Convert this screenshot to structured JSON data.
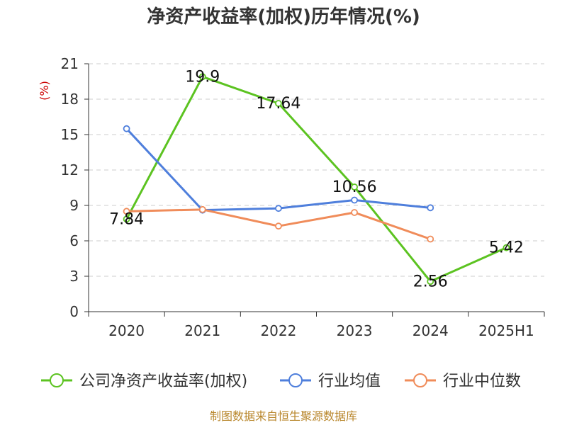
{
  "chart_data": {
    "type": "line",
    "title": "净资产收益率(加权)历年情况(%)",
    "ylabel": "(%)",
    "xlabel": "",
    "categories": [
      "2020",
      "2021",
      "2022",
      "2023",
      "2024",
      "2025H1"
    ],
    "ylim": [
      0,
      21
    ],
    "yticks": [
      0,
      3,
      6,
      9,
      12,
      15,
      18,
      21
    ],
    "grid": "horizontal dashed",
    "legend_position": "bottom",
    "series": [
      {
        "name": "公司净资产收益率(加权)",
        "color": "#5cc321",
        "values": [
          7.84,
          19.9,
          17.64,
          10.56,
          2.56,
          5.42
        ],
        "show_labels": true,
        "labels": [
          "7.84",
          "19.9",
          "17.64",
          "10.56",
          "2.56",
          "5.42"
        ]
      },
      {
        "name": "行业均值",
        "color": "#4f7fdc",
        "values": [
          15.5,
          8.6,
          8.75,
          9.45,
          8.8,
          null
        ],
        "show_labels": false
      },
      {
        "name": "行业中位数",
        "color": "#f08c5a",
        "values": [
          8.5,
          8.65,
          7.25,
          8.4,
          6.15,
          null
        ],
        "show_labels": false
      }
    ]
  },
  "source_text": "制图数据来自恒生聚源数据库"
}
